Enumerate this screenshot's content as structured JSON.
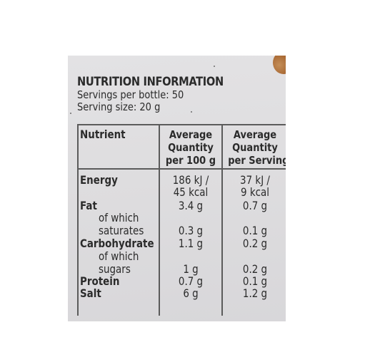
{
  "label": {
    "title": "NUTRITION INFORMATION",
    "servings_per_bottle": "Servings per bottle: 50",
    "serving_size": "Serving size: 20 g"
  },
  "table": {
    "headers": {
      "nutrient": "Nutrient",
      "per_100g": [
        "Average",
        "Quantity",
        "per 100 g"
      ],
      "per_serving": [
        "Average",
        "Quantity",
        "per Serving"
      ]
    },
    "rows": {
      "energy": {
        "name": "Energy",
        "per_100g": [
          "186 kJ /",
          "45 kcal"
        ],
        "per_serving": [
          "37 kJ /",
          "9 kcal"
        ]
      },
      "fat": {
        "name": "Fat",
        "per_100g": "3.4 g",
        "per_serving": "0.7 g"
      },
      "saturates": {
        "name": [
          "of which",
          "saturates"
        ],
        "per_100g": "0.3 g",
        "per_serving": "0.1 g"
      },
      "carbohydrate": {
        "name": "Carbohydrate",
        "per_100g": "1.1 g",
        "per_serving": "0.2 g"
      },
      "sugars": {
        "name": [
          "of which",
          "sugars"
        ],
        "per_100g": "1 g",
        "per_serving": "0.2 g"
      },
      "protein": {
        "name": "Protein",
        "per_100g": "0.7 g",
        "per_serving": "0.1 g"
      },
      "salt": {
        "name": "Salt",
        "per_100g": "6 g",
        "per_serving": "1.2 g"
      }
    }
  }
}
